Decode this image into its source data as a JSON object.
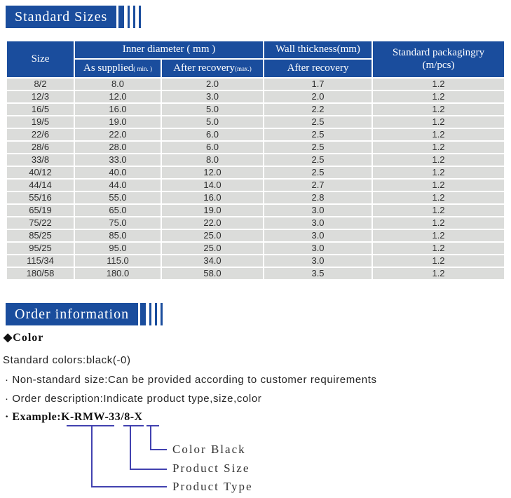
{
  "colors": {
    "header_blue": "#1a4d9d",
    "row_gray": "#dbdcda",
    "line_blue": "#4242b0"
  },
  "section_standard_sizes": {
    "title": "Standard Sizes"
  },
  "section_order_info": {
    "title": "Order information"
  },
  "table": {
    "header": {
      "size": "Size",
      "inner_diameter": "Inner diameter ( mm )",
      "as_supplied": "As supplied",
      "as_supplied_note": "( min. )",
      "after_recovery": "After recovery",
      "after_recovery_note": "(max.)",
      "wall_thickness": "Wall thickness(mm)",
      "wall_after_recovery": "After recovery",
      "packaging_line1": "Standard packagingry",
      "packaging_line2": "(m/pcs)"
    },
    "rows": [
      [
        "8/2",
        "8.0",
        "2.0",
        "1.7",
        "1.2"
      ],
      [
        "12/3",
        "12.0",
        "3.0",
        "2.0",
        "1.2"
      ],
      [
        "16/5",
        "16.0",
        "5.0",
        "2.2",
        "1.2"
      ],
      [
        "19/5",
        "19.0",
        "5.0",
        "2.5",
        "1.2"
      ],
      [
        "22/6",
        "22.0",
        "6.0",
        "2.5",
        "1.2"
      ],
      [
        "28/6",
        "28.0",
        "6.0",
        "2.5",
        "1.2"
      ],
      [
        "33/8",
        "33.0",
        "8.0",
        "2.5",
        "1.2"
      ],
      [
        "40/12",
        "40.0",
        "12.0",
        "2.5",
        "1.2"
      ],
      [
        "44/14",
        "44.0",
        "14.0",
        "2.7",
        "1.2"
      ],
      [
        "55/16",
        "55.0",
        "16.0",
        "2.8",
        "1.2"
      ],
      [
        "65/19",
        "65.0",
        "19.0",
        "3.0",
        "1.2"
      ],
      [
        "75/22",
        "75.0",
        "22.0",
        "3.0",
        "1.2"
      ],
      [
        "85/25",
        "85.0",
        "25.0",
        "3.0",
        "1.2"
      ],
      [
        "95/25",
        "95.0",
        "25.0",
        "3.0",
        "1.2"
      ],
      [
        "115/34",
        "115.0",
        "34.0",
        "3.0",
        "1.2"
      ],
      [
        "180/58",
        "180.0",
        "58.0",
        "3.5",
        "1.2"
      ]
    ]
  },
  "order": {
    "color_heading": "◆Color",
    "standard_colors": "Standard colors:black(-0)",
    "bullet_nonstandard": "· Non-standard size:Can be provided according to customer requirements",
    "bullet_orderdesc": "· Order description:Indicate product type,size,color",
    "example": "· Example:K-RMW-33/8-X",
    "labels": {
      "color": "Color Black",
      "size": "Product Size",
      "type": "Product Type"
    }
  }
}
